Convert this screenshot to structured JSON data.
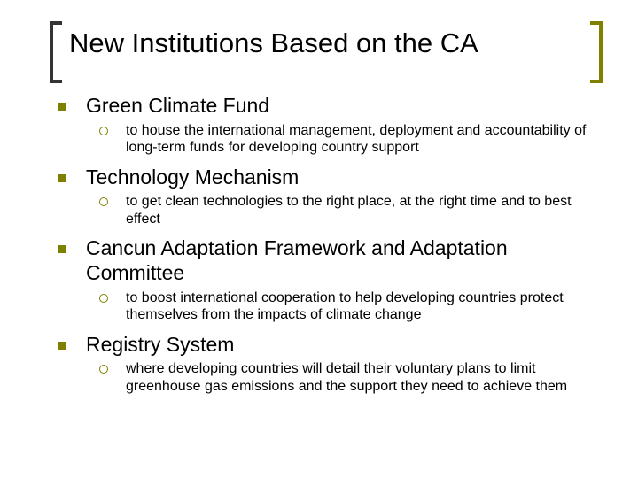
{
  "title": "New Institutions Based on the CA",
  "colors": {
    "background": "#ffffff",
    "text": "#000000",
    "l1_bullet": "#808000",
    "l2_bullet": "#808000",
    "bracket_left": "#333333",
    "bracket_right": "#808000"
  },
  "typography": {
    "title_fontsize": 31,
    "l1_fontsize": 23,
    "l2_fontsize": 16,
    "font_family": "Arial"
  },
  "items": [
    {
      "label": "Green Climate Fund",
      "sub": [
        "to house the international management, deployment and accountability of long-term funds for developing country support"
      ]
    },
    {
      "label": "Technology Mechanism",
      "sub": [
        "to get clean technologies to the right place, at the right time and to best effect"
      ]
    },
    {
      "label": "Cancun Adaptation Framework and Adaptation Committee",
      "sub": [
        "to boost international cooperation to help developing countries protect themselves from the impacts of climate change"
      ]
    },
    {
      "label": "Registry System",
      "sub": [
        "where developing countries will detail their voluntary plans to limit greenhouse gas emissions and the support they need to achieve them"
      ]
    }
  ]
}
